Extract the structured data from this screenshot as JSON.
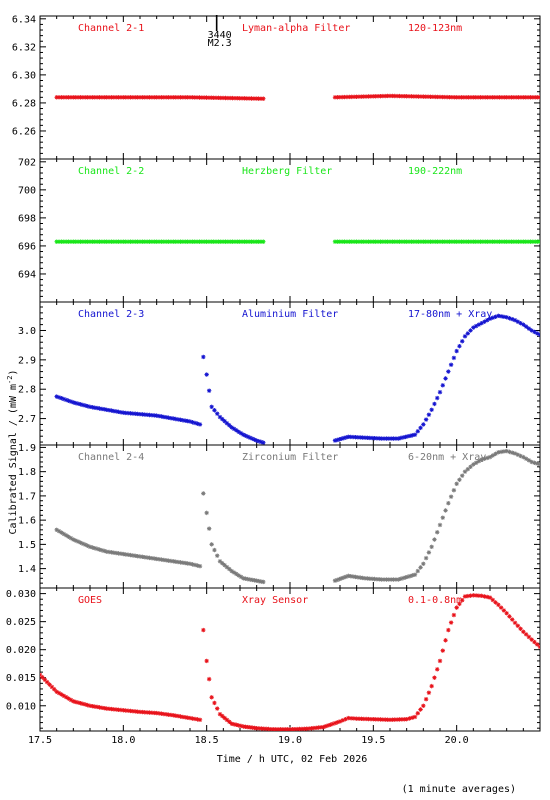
{
  "xlabel": "Time / h UTC, 02 Feb 2026",
  "ylabel": "Calibrated Signal / (mW m",
  "ylabel_sup": "-2",
  "ylabel_end": ")",
  "footnote": "(1 minute averages)",
  "flare_marker": {
    "time": 18.56,
    "labels": [
      "3440",
      "M2.3"
    ]
  },
  "colors": {
    "red": "#e8121a",
    "green": "#19e619",
    "blue": "#1414d0",
    "gray": "#7a7a7a"
  },
  "chart_data": [
    {
      "type": "scatter",
      "marker": "star",
      "color": "#e8121a",
      "labels": [
        "Channel 2-1",
        "Lyman-alpha Filter",
        "120-123nm"
      ],
      "xlim": [
        17.5,
        20.5
      ],
      "ylim": [
        6.24,
        6.342
      ],
      "xticks": [
        17.5,
        18.0,
        18.5,
        19.0,
        19.5,
        20.0
      ],
      "yticks": [
        "6.26",
        "6.28",
        "6.30",
        "6.32",
        "6.34"
      ],
      "gaps": [
        [
          18.84,
          19.27
        ]
      ],
      "x": [
        17.6,
        18.0,
        18.4,
        18.84,
        19.27,
        19.6,
        20.0,
        20.5
      ],
      "y": [
        6.284,
        6.284,
        6.284,
        6.283,
        6.284,
        6.285,
        6.284,
        6.284
      ]
    },
    {
      "type": "scatter",
      "marker": "star",
      "color": "#19e619",
      "labels": [
        "Channel 2-2",
        "Herzberg Filter",
        "190-222nm"
      ],
      "xlim": [
        17.5,
        20.5
      ],
      "ylim": [
        692.0,
        702.2
      ],
      "xticks": [
        17.5,
        18.0,
        18.5,
        19.0,
        19.5,
        20.0
      ],
      "yticks": [
        "694",
        "696",
        "698",
        "700",
        "702"
      ],
      "gaps": [
        [
          18.84,
          19.27
        ]
      ],
      "x": [
        17.6,
        18.0,
        18.4,
        18.84,
        19.27,
        19.6,
        20.0,
        20.5
      ],
      "y": [
        696.3,
        696.3,
        696.3,
        696.3,
        696.3,
        696.3,
        696.3,
        696.3
      ]
    },
    {
      "type": "scatter",
      "marker": "star",
      "color": "#1414d0",
      "labels": [
        "Channel 2-3",
        "Aluminium Filter",
        "17-80nm + Xray"
      ],
      "xlim": [
        17.5,
        20.5
      ],
      "ylim": [
        2.61,
        3.097
      ],
      "xticks": [
        17.5,
        18.0,
        18.5,
        19.0,
        19.5,
        20.0
      ],
      "yticks": [
        "2.7",
        "2.8",
        "2.9",
        "3.0"
      ],
      "gaps": [
        [
          18.84,
          19.27
        ]
      ],
      "x": [
        17.6,
        17.7,
        17.8,
        17.9,
        18.0,
        18.1,
        18.2,
        18.3,
        18.4,
        18.46,
        18.48,
        18.5,
        18.53,
        18.58,
        18.65,
        18.72,
        18.8,
        18.84,
        19.27,
        19.35,
        19.45,
        19.55,
        19.65,
        19.75,
        19.8,
        19.85,
        19.9,
        19.95,
        20.0,
        20.05,
        20.1,
        20.15,
        20.2,
        20.25,
        20.3,
        20.35,
        20.4,
        20.45,
        20.5
      ],
      "y": [
        2.775,
        2.755,
        2.74,
        2.73,
        2.72,
        2.715,
        2.71,
        2.7,
        2.69,
        2.68,
        2.91,
        2.85,
        2.74,
        2.705,
        2.67,
        2.645,
        2.625,
        2.618,
        2.625,
        2.638,
        2.635,
        2.632,
        2.632,
        2.645,
        2.68,
        2.73,
        2.79,
        2.86,
        2.93,
        2.98,
        3.01,
        3.025,
        3.04,
        3.05,
        3.045,
        3.035,
        3.02,
        3.0,
        2.985
      ]
    },
    {
      "type": "scatter",
      "marker": "star",
      "color": "#7a7a7a",
      "labels": [
        "Channel 2-4",
        "Zirconium Filter",
        "6-20nm + Xray"
      ],
      "xlim": [
        17.5,
        20.5
      ],
      "ylim": [
        1.32,
        1.91
      ],
      "xticks": [
        17.5,
        18.0,
        18.5,
        19.0,
        19.5,
        20.0
      ],
      "yticks": [
        "1.4",
        "1.5",
        "1.6",
        "1.7",
        "1.8",
        "1.9"
      ],
      "gaps": [
        [
          18.84,
          19.27
        ]
      ],
      "x": [
        17.6,
        17.7,
        17.8,
        17.9,
        18.0,
        18.1,
        18.2,
        18.3,
        18.4,
        18.46,
        18.48,
        18.5,
        18.53,
        18.58,
        18.65,
        18.72,
        18.8,
        18.84,
        19.27,
        19.35,
        19.45,
        19.55,
        19.65,
        19.75,
        19.8,
        19.85,
        19.9,
        19.95,
        20.0,
        20.05,
        20.1,
        20.15,
        20.2,
        20.25,
        20.3,
        20.35,
        20.4,
        20.45,
        20.5
      ],
      "y": [
        1.56,
        1.52,
        1.49,
        1.47,
        1.46,
        1.45,
        1.44,
        1.43,
        1.42,
        1.41,
        1.71,
        1.63,
        1.5,
        1.43,
        1.39,
        1.36,
        1.35,
        1.345,
        1.35,
        1.37,
        1.36,
        1.355,
        1.355,
        1.375,
        1.42,
        1.49,
        1.58,
        1.67,
        1.75,
        1.8,
        1.83,
        1.85,
        1.86,
        1.88,
        1.885,
        1.875,
        1.86,
        1.84,
        1.83
      ]
    },
    {
      "type": "scatter",
      "marker": "star",
      "color": "#e8121a",
      "labels": [
        "GOES",
        "Xray Sensor",
        "0.1-0.8nm"
      ],
      "xlim": [
        17.5,
        20.5
      ],
      "ylim": [
        0.0055,
        0.031
      ],
      "xticks": [
        17.5,
        18.0,
        18.5,
        19.0,
        19.5,
        20.0
      ],
      "yticks": [
        "0.010",
        "0.015",
        "0.020",
        "0.025",
        "0.030"
      ],
      "gaps": [],
      "x": [
        17.5,
        17.6,
        17.7,
        17.8,
        17.9,
        18.0,
        18.1,
        18.2,
        18.3,
        18.4,
        18.46,
        18.48,
        18.5,
        18.53,
        18.58,
        18.65,
        18.72,
        18.8,
        18.9,
        19.0,
        19.1,
        19.2,
        19.3,
        19.35,
        19.4,
        19.5,
        19.6,
        19.7,
        19.75,
        19.8,
        19.85,
        19.9,
        19.95,
        20.0,
        20.05,
        20.1,
        20.15,
        20.2,
        20.25,
        20.3,
        20.35,
        20.4,
        20.45,
        20.5
      ],
      "y": [
        0.0155,
        0.0125,
        0.0108,
        0.01,
        0.0095,
        0.0092,
        0.0089,
        0.0087,
        0.0083,
        0.0078,
        0.0075,
        0.0235,
        0.018,
        0.0115,
        0.0085,
        0.0068,
        0.0063,
        0.006,
        0.0058,
        0.0058,
        0.0059,
        0.0062,
        0.0072,
        0.0078,
        0.0077,
        0.0076,
        0.0075,
        0.0076,
        0.008,
        0.01,
        0.0135,
        0.018,
        0.0235,
        0.0275,
        0.0295,
        0.0297,
        0.0296,
        0.0293,
        0.028,
        0.0265,
        0.0248,
        0.0232,
        0.0218,
        0.0205
      ]
    }
  ]
}
